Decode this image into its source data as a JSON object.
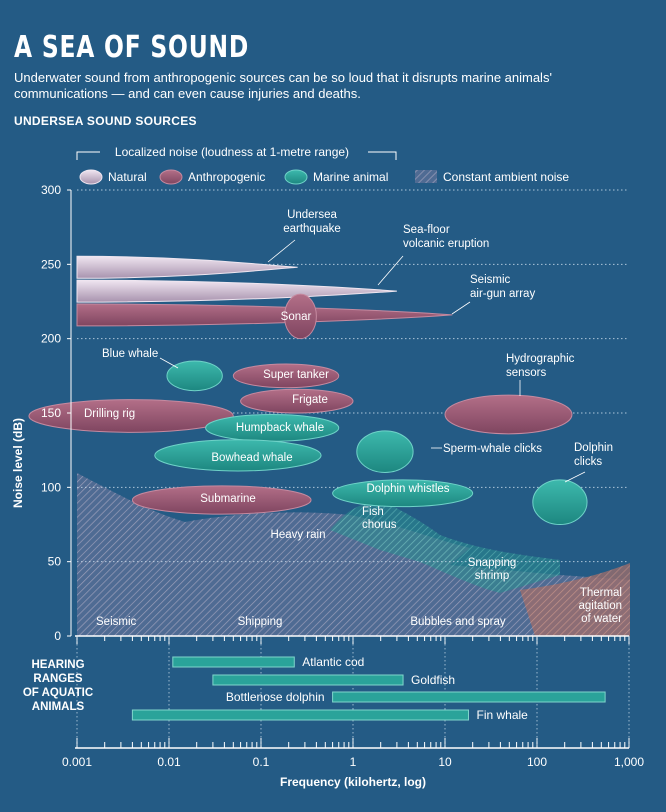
{
  "header": {
    "title": "A SEA OF SOUND",
    "subtitle": "Underwater sound from anthropogenic sources can be so loud that it disrupts marine animals' communications — and can even cause injuries and deaths.",
    "section_title": "UNDERSEA SOUND SOURCES"
  },
  "colors": {
    "background": "#245b85",
    "natural": "#c9b9cc",
    "anthropogenic": "#9b5a72",
    "marine": "#2aa39a",
    "ambient_hatch": "#b7a1bb"
  },
  "chart_data": {
    "type": "scatter",
    "x_scale": "log",
    "xlim": [
      0.001,
      1000
    ],
    "ylim": [
      0,
      300
    ],
    "xlabel": "Frequency (kilohertz, log)",
    "ylabel": "Noise level (dB)",
    "xticks": [
      0.001,
      0.01,
      0.1,
      1,
      10,
      100,
      1000
    ],
    "xtick_labels": [
      "0.001",
      "0.01",
      "0.1",
      "1",
      "10",
      "100",
      "1,000"
    ],
    "yticks": [
      0,
      50,
      100,
      150,
      200,
      250,
      300
    ],
    "ytick_labels": [
      "0",
      "50",
      "100",
      "150",
      "200",
      "250",
      "300"
    ],
    "legend": {
      "caption": "Localized noise (loudness at 1-metre range)",
      "items": [
        {
          "key": "natural",
          "label": "Natural"
        },
        {
          "key": "anthropogenic",
          "label": "Anthropogenic"
        },
        {
          "key": "marine",
          "label": "Marine animal"
        },
        {
          "key": "ambient",
          "label": "Constant ambient noise"
        }
      ]
    },
    "sources": [
      {
        "label": "Undersea earthquake",
        "category": "natural",
        "shape": "wedge",
        "x_min": 0.001,
        "x_max": 0.25,
        "y": 248
      },
      {
        "label": "Sea-floor volcanic eruption",
        "category": "natural",
        "shape": "wedge",
        "x_min": 0.001,
        "x_max": 3,
        "y": 232
      },
      {
        "label": "Seismic air-gun array",
        "category": "anthropogenic",
        "shape": "wedge",
        "x_min": 0.001,
        "x_max": 12,
        "y": 216
      },
      {
        "label": "Sonar",
        "category": "anthropogenic",
        "shape": "ellipse",
        "x_min": 0.18,
        "x_max": 0.4,
        "y_min": 200,
        "y_max": 230
      },
      {
        "label": "Blue whale",
        "category": "marine",
        "shape": "ellipse",
        "x_min": 0.0095,
        "x_max": 0.038,
        "y_min": 165,
        "y_max": 185
      },
      {
        "label": "Super tanker",
        "category": "anthropogenic",
        "shape": "ellipse",
        "x_min": 0.05,
        "x_max": 0.7,
        "y_min": 167,
        "y_max": 183
      },
      {
        "label": "Frigate",
        "category": "anthropogenic",
        "shape": "ellipse",
        "x_min": 0.06,
        "x_max": 1,
        "y_min": 150,
        "y_max": 166
      },
      {
        "label": "Drilling rig",
        "category": "anthropogenic",
        "shape": "ellipse",
        "x_min": 0.0003,
        "x_max": 0.05,
        "y_min": 137,
        "y_max": 159
      },
      {
        "label": "Hydrographic sensors",
        "category": "anthropogenic",
        "shape": "ellipse",
        "x_min": 10,
        "x_max": 240,
        "y_min": 136,
        "y_max": 162
      },
      {
        "label": "Humpback whale",
        "category": "marine",
        "shape": "ellipse",
        "x_min": 0.025,
        "x_max": 0.7,
        "y_min": 131,
        "y_max": 149
      },
      {
        "label": "Sperm-whale clicks",
        "category": "marine",
        "shape": "ellipse",
        "x_min": 1.1,
        "x_max": 4.5,
        "y_min": 110,
        "y_max": 138
      },
      {
        "label": "Bowhead whale",
        "category": "marine",
        "shape": "ellipse",
        "x_min": 0.007,
        "x_max": 0.45,
        "y_min": 111,
        "y_max": 132
      },
      {
        "label": "Dolphin whistles",
        "category": "marine",
        "shape": "ellipse",
        "x_min": 0.6,
        "x_max": 20,
        "y_min": 87,
        "y_max": 105
      },
      {
        "label": "Dolphin clicks",
        "category": "marine",
        "shape": "ellipse",
        "x_min": 90,
        "x_max": 350,
        "y_min": 75,
        "y_max": 105
      },
      {
        "label": "Submarine",
        "category": "anthropogenic",
        "shape": "ellipse",
        "x_min": 0.004,
        "x_max": 0.35,
        "y_min": 82,
        "y_max": 101
      }
    ],
    "ambient": [
      {
        "label": "Heavy rain"
      },
      {
        "label": "Fish chorus"
      },
      {
        "label": "Snapping shrimp"
      },
      {
        "label": "Seismic"
      },
      {
        "label": "Shipping"
      },
      {
        "label": "Bubbles and spray"
      },
      {
        "label": "Thermal agitation of water"
      }
    ],
    "hearing": {
      "title": "HEARING RANGES OF AQUATIC ANIMALS",
      "ranges": [
        {
          "label": "Atlantic cod",
          "x_min": 0.011,
          "x_max": 0.23
        },
        {
          "label": "Goldfish",
          "x_min": 0.03,
          "x_max": 3.5
        },
        {
          "label": "Bottlenose dolphin",
          "x_min": 0.6,
          "x_max": 550
        },
        {
          "label": "Fin whale",
          "x_min": 0.004,
          "x_max": 18
        }
      ]
    }
  }
}
